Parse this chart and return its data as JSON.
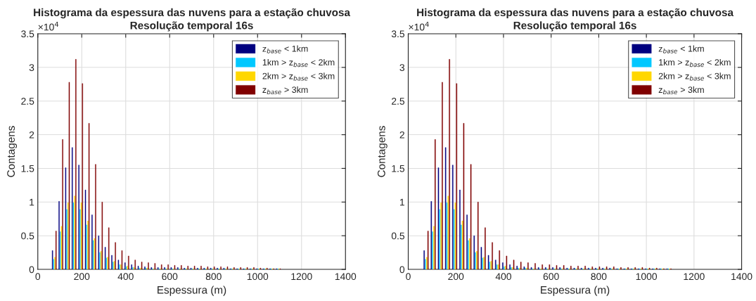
{
  "chart_data": [
    {
      "type": "bar",
      "title": "Histograma da espessura das nuvens para a estação chuvosa",
      "subtitle": "Resolução temporal 16s",
      "xlabel": "Espessura (m)",
      "ylabel": "Contagens",
      "annotations": [
        "×10$^{4}$"
      ],
      "x": [
        75,
        105,
        135,
        165,
        195,
        225,
        255,
        285,
        315,
        345,
        375,
        405,
        435,
        465,
        495,
        525,
        555,
        585,
        615,
        645,
        675,
        705,
        735,
        765,
        795,
        825,
        855,
        885,
        915,
        945,
        975,
        1005,
        1035,
        1065,
        1095
      ],
      "series": [
        {
          "name": "z$_{base}$ < 1km",
          "color": "#000080",
          "values": [
            0.28,
            1.01,
            1.51,
            1.81,
            1.55,
            1.18,
            0.81,
            0.5,
            0.33,
            0.21,
            0.14,
            0.1,
            0.07,
            0.05,
            0.04,
            0.03,
            0.03,
            0.03,
            0.03,
            0.03,
            0.02,
            0.02,
            0.02,
            0.02,
            0.02,
            0.02,
            0.02,
            0.01,
            0.01,
            0.01,
            0.01,
            0.01,
            0.01,
            0.01,
            0.01
          ]
        },
        {
          "name": "1km > z$_{base}$ < 2km",
          "color": "#00C8FF",
          "values": [
            0.15,
            0.56,
            0.89,
            0.99,
            0.89,
            0.66,
            0.43,
            0.25,
            0.17,
            0.11,
            0.07,
            0.04,
            0.03,
            0.02,
            0.02,
            0.01,
            0.01,
            0.01,
            0.01,
            0.01,
            0.01,
            0.01,
            0.01,
            0.01,
            0.01,
            0.01,
            0.01,
            0.01,
            0.01,
            0.01,
            0.01,
            0.01,
            0.01,
            0.01,
            0.01
          ]
        },
        {
          "name": "2km > z$_{base}$ < 3km",
          "color": "#FFD700",
          "values": [
            0.18,
            0.64,
            0.99,
            1.09,
            0.99,
            0.72,
            0.46,
            0.27,
            0.18,
            0.12,
            0.07,
            0.05,
            0.03,
            0.02,
            0.02,
            0.01,
            0.01,
            0.01,
            0.01,
            0.01,
            0.01,
            0.01,
            0.01,
            0.01,
            0.01,
            0.01,
            0.01,
            0.01,
            0.01,
            0.01,
            0.01,
            0.01,
            0.01,
            0.01,
            0.01
          ]
        },
        {
          "name": "z$_{base}$ > 3km",
          "color": "#800000",
          "values": [
            0.57,
            1.93,
            2.78,
            3.12,
            2.76,
            2.17,
            1.56,
            1,
            0.62,
            0.4,
            0.28,
            0.2,
            0.14,
            0.11,
            0.1,
            0.09,
            0.07,
            0.07,
            0.06,
            0.06,
            0.05,
            0.05,
            0.05,
            0.04,
            0.04,
            0.04,
            0.04,
            0.03,
            0.03,
            0.03,
            0.03,
            0.02,
            0.02,
            0.01,
            0.01
          ]
        }
      ],
      "xlim": [
        0,
        1400
      ],
      "xticks": [
        0,
        200,
        400,
        600,
        800,
        1000,
        1200,
        1400
      ],
      "ylim": [
        0,
        3.5
      ],
      "yticks": [
        0,
        0.5,
        1,
        1.5,
        2,
        2.5,
        3,
        3.5
      ],
      "grid": true,
      "legend": "top right"
    },
    {
      "type": "bar",
      "title": "Histograma da espessura das nuvens para a estação chuvosa",
      "subtitle": "Resolução temporal 16s",
      "xlabel": "Espessura (m)",
      "ylabel": "Contagens",
      "annotations": [
        "×10$^{4}$"
      ],
      "x": [
        75,
        105,
        135,
        165,
        195,
        225,
        255,
        285,
        315,
        345,
        375,
        405,
        435,
        465,
        495,
        525,
        555,
        585,
        615,
        645,
        675,
        705,
        735,
        765,
        795,
        825,
        855,
        885,
        915,
        945,
        975,
        1005,
        1035,
        1065,
        1095
      ],
      "series": [
        {
          "name": "z$_{base}$ < 1km",
          "color": "#000080",
          "values": [
            0.28,
            1.01,
            1.51,
            1.81,
            1.55,
            1.18,
            0.81,
            0.5,
            0.33,
            0.21,
            0.14,
            0.1,
            0.07,
            0.05,
            0.04,
            0.03,
            0.03,
            0.03,
            0.03,
            0.03,
            0.02,
            0.02,
            0.02,
            0.02,
            0.02,
            0.02,
            0.02,
            0.01,
            0.01,
            0.01,
            0.01,
            0.01,
            0.01,
            0.01,
            0.01
          ]
        },
        {
          "name": "1km > z$_{base}$ < 2km",
          "color": "#00C8FF",
          "values": [
            0.15,
            0.56,
            0.89,
            0.99,
            0.89,
            0.66,
            0.43,
            0.25,
            0.17,
            0.11,
            0.07,
            0.04,
            0.03,
            0.02,
            0.02,
            0.01,
            0.01,
            0.01,
            0.01,
            0.01,
            0.01,
            0.01,
            0.01,
            0.01,
            0.01,
            0.01,
            0.01,
            0.01,
            0.01,
            0.01,
            0.01,
            0.01,
            0.01,
            0.01,
            0.01
          ]
        },
        {
          "name": "2km > z$_{base}$ < 3km",
          "color": "#FFD700",
          "values": [
            0.18,
            0.64,
            0.99,
            1.09,
            0.99,
            0.72,
            0.46,
            0.27,
            0.18,
            0.12,
            0.07,
            0.05,
            0.03,
            0.02,
            0.02,
            0.01,
            0.01,
            0.01,
            0.01,
            0.01,
            0.01,
            0.01,
            0.01,
            0.01,
            0.01,
            0.01,
            0.01,
            0.01,
            0.01,
            0.01,
            0.01,
            0.01,
            0.01,
            0.01,
            0.01
          ]
        },
        {
          "name": "z$_{base}$ > 3km",
          "color": "#800000",
          "values": [
            0.57,
            1.93,
            2.78,
            3.12,
            2.76,
            2.17,
            1.56,
            1,
            0.62,
            0.4,
            0.28,
            0.2,
            0.14,
            0.11,
            0.1,
            0.09,
            0.07,
            0.07,
            0.06,
            0.06,
            0.05,
            0.05,
            0.05,
            0.04,
            0.04,
            0.04,
            0.04,
            0.03,
            0.03,
            0.03,
            0.03,
            0.02,
            0.02,
            0.01,
            0.01
          ]
        }
      ],
      "xlim": [
        0,
        1400
      ],
      "xticks": [
        0,
        200,
        400,
        600,
        800,
        1000,
        1200,
        1400
      ],
      "ylim": [
        0,
        3.5
      ],
      "yticks": [
        0,
        0.5,
        1,
        1.5,
        2,
        2.5,
        3,
        3.5
      ],
      "grid": true,
      "legend": "top right"
    }
  ]
}
